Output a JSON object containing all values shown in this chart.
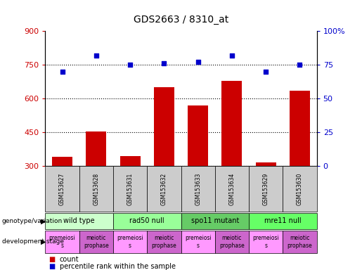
{
  "title": "GDS2663 / 8310_at",
  "samples": [
    "GSM153627",
    "GSM153628",
    "GSM153631",
    "GSM153632",
    "GSM153633",
    "GSM153634",
    "GSM153629",
    "GSM153630"
  ],
  "counts": [
    340,
    455,
    345,
    650,
    570,
    680,
    315,
    635
  ],
  "percentiles": [
    70,
    82,
    75,
    76,
    77,
    82,
    70,
    75
  ],
  "ylim_left": [
    300,
    900
  ],
  "ylim_right": [
    0,
    100
  ],
  "yticks_left": [
    300,
    450,
    600,
    750,
    900
  ],
  "yticks_right": [
    0,
    25,
    50,
    75,
    100
  ],
  "bar_color": "#cc0000",
  "dot_color": "#0000cc",
  "bar_width": 0.6,
  "genotype_groups": [
    {
      "label": "wild type",
      "start": 0,
      "end": 2,
      "color": "#ccffcc"
    },
    {
      "label": "rad50 null",
      "start": 2,
      "end": 4,
      "color": "#99ff99"
    },
    {
      "label": "spo11 mutant",
      "start": 4,
      "end": 6,
      "color": "#66cc66"
    },
    {
      "label": "mre11 null",
      "start": 6,
      "end": 8,
      "color": "#66ff66"
    }
  ],
  "dev_stage_groups": [
    {
      "label": "premeiosi\ns",
      "start": 0,
      "end": 1,
      "color": "#ff99ff"
    },
    {
      "label": "meiotic\nprophase",
      "start": 1,
      "end": 2,
      "color": "#cc66cc"
    },
    {
      "label": "premeiosi\ns",
      "start": 2,
      "end": 3,
      "color": "#ff99ff"
    },
    {
      "label": "meiotic\nprophase",
      "start": 3,
      "end": 4,
      "color": "#cc66cc"
    },
    {
      "label": "premeiosi\ns",
      "start": 4,
      "end": 5,
      "color": "#ff99ff"
    },
    {
      "label": "meiotic\nprophase",
      "start": 5,
      "end": 6,
      "color": "#cc66cc"
    },
    {
      "label": "premeiosi\ns",
      "start": 6,
      "end": 7,
      "color": "#ff99ff"
    },
    {
      "label": "meiotic\nprophase",
      "start": 7,
      "end": 8,
      "color": "#cc66cc"
    }
  ],
  "background_color": "#ffffff",
  "tick_color_left": "#cc0000",
  "tick_color_right": "#0000cc",
  "grid_color": "#000000",
  "sample_box_color": "#cccccc"
}
